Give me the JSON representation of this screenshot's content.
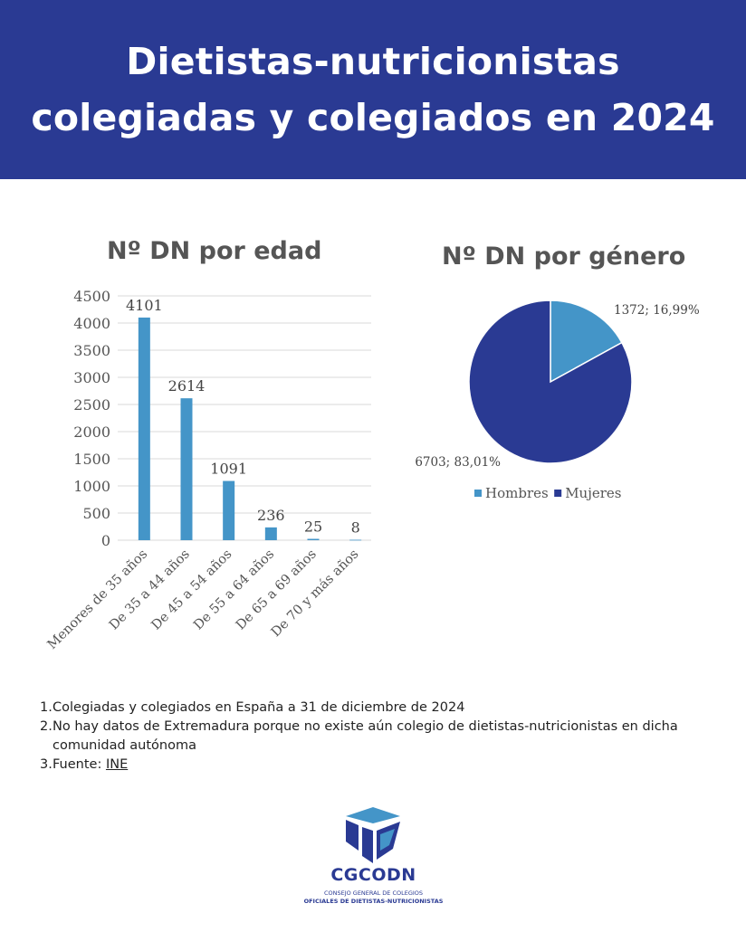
{
  "header": {
    "title_line1": "Dietistas-nutricionistas",
    "title_line2": "colegiadas y colegiados en 2024"
  },
  "chart_data": [
    {
      "type": "bar",
      "title": "Nº DN por edad",
      "categories": [
        "Menores de 35 años",
        "De 35 a 44 años",
        "De 45 a 54 años",
        "De 55 a 64 años",
        "De 65 a 69 años",
        "De 70 y más años"
      ],
      "values": [
        4101,
        2614,
        1091,
        236,
        25,
        8
      ],
      "data_labels": [
        "4101",
        "2614",
        "1091",
        "236",
        "25",
        "8"
      ],
      "yticks": [
        0,
        500,
        1000,
        1500,
        2000,
        2500,
        3000,
        3500,
        4000,
        4500
      ],
      "ylim": [
        0,
        4500
      ],
      "grid": true,
      "color": "#4495c8"
    },
    {
      "type": "pie",
      "title": "Nº DN por género",
      "slices": [
        {
          "name": "Hombres",
          "value": 1372,
          "percent": 16.99,
          "label": "1372; 16,99%",
          "color": "#4495c8"
        },
        {
          "name": "Mujeres",
          "value": 6703,
          "percent": 83.01,
          "label": "6703; 83,01%",
          "color": "#2a3a93"
        }
      ],
      "legend": "bottom"
    }
  ],
  "notes": [
    {
      "num": "1.",
      "text": "Colegiadas y colegiados en España a 31 de diciembre de 2024"
    },
    {
      "num": "2.",
      "text": "No hay datos de Extremadura porque no existe aún colegio de dietistas-nutricionistas en dicha comunidad autónoma"
    },
    {
      "num": "3.",
      "text": "Fuente: ",
      "link": "INE"
    }
  ],
  "logo": {
    "name": "CGCODN",
    "sub1": "CONSEJO GENERAL DE COLEGIOS",
    "sub2": "OFICIALES DE DIETISTAS-NUTRICIONISTAS"
  }
}
